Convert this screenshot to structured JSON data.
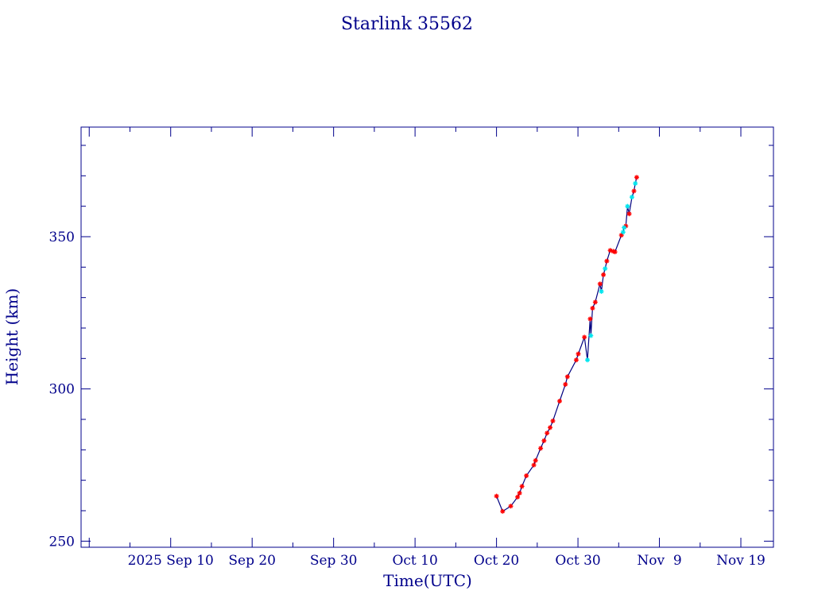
{
  "chart_data": {
    "type": "line",
    "title": "Starlink 35562",
    "xlabel": "Time(UTC)",
    "ylabel": "Height (km)",
    "x_ticks": [
      "2025 Sep 10",
      "Sep 20",
      "Sep 30",
      "Oct 10",
      "Oct 20",
      "Oct 30",
      "Nov  9",
      "Nov 19"
    ],
    "x_tick_days": [
      0,
      10,
      20,
      30,
      40,
      50,
      60,
      70
    ],
    "xlim": [
      "2025-08-30",
      "2025-11-23"
    ],
    "y_ticks": [
      250,
      300,
      350
    ],
    "ylim": [
      248,
      386
    ],
    "grid": false,
    "colors": {
      "axis": "#00008b",
      "line": "#000080",
      "primary": "#ff0000",
      "secondary": "#00e5ee"
    },
    "series": [
      {
        "marker": "red-asterisk",
        "x": [
          "2025-10-20",
          "2025-10-20T18:00",
          "2025-10-21T18:00",
          "2025-10-22T14:00",
          "2025-10-22T20:00",
          "2025-10-23T03:00",
          "2025-10-23T16:00",
          "2025-10-24T14:00",
          "2025-10-24T19:00",
          "2025-10-25T10:00",
          "2025-10-25T20:00",
          "2025-10-26T05:00",
          "2025-10-26T14:00",
          "2025-10-26T22:00",
          "2025-10-27T18:00",
          "2025-10-28T11:00",
          "2025-10-28T17:00",
          "2025-10-29T19:00",
          "2025-10-30T01:00",
          "2025-10-30T19:00",
          "2025-10-31T12:00",
          "2025-10-31T19:00",
          "2025-11-01T03:00",
          "2025-11-01T17:00",
          "2025-11-02T03:00",
          "2025-11-02T13:00",
          "2025-11-02T23:00",
          "2025-11-03T08:00",
          "2025-11-03T13:00",
          "2025-11-04T08:00",
          "2025-11-04T21:00",
          "2025-11-05T07:00",
          "2025-11-05T21:00",
          "2025-11-06T05:00"
        ],
        "y": [
          264.8,
          259.8,
          261.5,
          264.5,
          265.8,
          268,
          271.5,
          275,
          276.5,
          280.5,
          283,
          285.5,
          287.3,
          289.5,
          296,
          301.5,
          304,
          309.5,
          311.5,
          317,
          323,
          326.5,
          328.5,
          334.5,
          337.5,
          342,
          345.5,
          345.2,
          345,
          350.5,
          353.5,
          357.5,
          365,
          369.5
        ]
      },
      {
        "marker": "cyan-asterisk",
        "x": [
          "2025-10-31T04:00",
          "2025-10-31T14:00",
          "2025-11-01T21:00",
          "2025-11-02T08:00",
          "2025-11-04T13:00",
          "2025-11-04T16:00",
          "2025-11-05T02:00",
          "2025-11-05T15:00",
          "2025-11-06T01:00"
        ],
        "y": [
          309.5,
          317.5,
          332,
          339.5,
          351.5,
          353,
          360,
          363,
          367.5
        ]
      }
    ]
  }
}
